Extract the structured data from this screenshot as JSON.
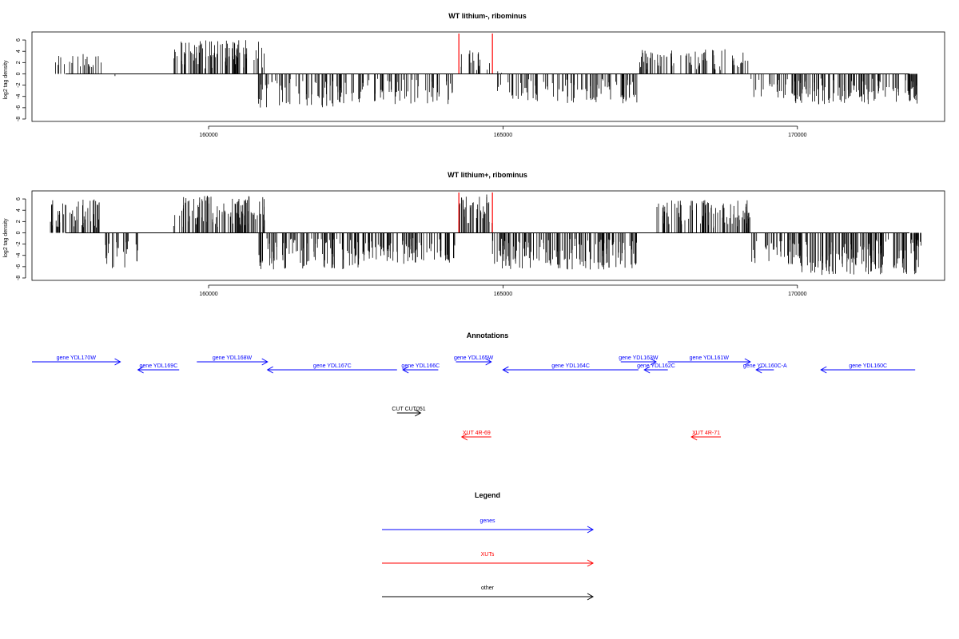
{
  "chart_data": [
    {
      "type": "bar",
      "title": "WT lithium-, ribominus",
      "ylabel": "log2 tag density",
      "xlim": [
        157000,
        172500
      ],
      "ylim": [
        -8,
        7
      ],
      "x_ticks": [
        "160000",
        "165000",
        "170000"
      ],
      "y_ticks": [
        "6",
        "4",
        "2",
        "0",
        "-2",
        "-4",
        "-6",
        "-8"
      ],
      "highlight_color": "#ff0000",
      "highlight_x": [
        164250,
        164820
      ],
      "segments": [
        {
          "start": 157300,
          "end": 158200,
          "sign": 1,
          "max": 3.5,
          "density": 0.35
        },
        {
          "start": 158200,
          "end": 158500,
          "sign": -1,
          "max": 1.5,
          "density": 0.03
        },
        {
          "start": 159400,
          "end": 160950,
          "sign": 1,
          "max": 6.0,
          "density": 0.8
        },
        {
          "start": 160800,
          "end": 162600,
          "sign": -1,
          "max": 6.0,
          "density": 0.55
        },
        {
          "start": 162600,
          "end": 164200,
          "sign": -1,
          "max": 5.5,
          "density": 0.5
        },
        {
          "start": 164250,
          "end": 164820,
          "sign": 1,
          "max": 4.2,
          "density": 0.35
        },
        {
          "start": 164820,
          "end": 165100,
          "sign": 1,
          "max": 1.0,
          "density": 0.1
        },
        {
          "start": 164900,
          "end": 167300,
          "sign": -1,
          "max": 5.2,
          "density": 0.55
        },
        {
          "start": 167300,
          "end": 169200,
          "sign": 1,
          "max": 4.5,
          "density": 0.55
        },
        {
          "start": 169200,
          "end": 170000,
          "sign": -1,
          "max": 4.5,
          "density": 0.45
        },
        {
          "start": 169900,
          "end": 172100,
          "sign": -1,
          "max": 5.5,
          "density": 0.8
        }
      ]
    },
    {
      "type": "bar",
      "title": "WT lithium+, ribominus",
      "ylabel": "log2 tag density",
      "xlim": [
        157000,
        172500
      ],
      "ylim": [
        -8,
        7
      ],
      "x_ticks": [
        "160000",
        "165000",
        "170000"
      ],
      "y_ticks": [
        "6",
        "4",
        "2",
        "0",
        "-2",
        "-4",
        "-6",
        "-8"
      ],
      "highlight_color": "#ff0000",
      "highlight_x": [
        164250,
        164820
      ],
      "segments": [
        {
          "start": 157300,
          "end": 158200,
          "sign": 1,
          "max": 6.0,
          "density": 0.85
        },
        {
          "start": 158200,
          "end": 158800,
          "sign": -1,
          "max": 6.3,
          "density": 0.55
        },
        {
          "start": 159400,
          "end": 160950,
          "sign": 1,
          "max": 7.0,
          "density": 0.9
        },
        {
          "start": 160800,
          "end": 162600,
          "sign": -1,
          "max": 6.5,
          "density": 0.75
        },
        {
          "start": 162600,
          "end": 164200,
          "sign": -1,
          "max": 5.5,
          "density": 0.75
        },
        {
          "start": 164250,
          "end": 164820,
          "sign": 1,
          "max": 7.0,
          "density": 0.9
        },
        {
          "start": 164820,
          "end": 167300,
          "sign": -1,
          "max": 6.5,
          "density": 0.8
        },
        {
          "start": 167600,
          "end": 169200,
          "sign": 1,
          "max": 5.8,
          "density": 0.75
        },
        {
          "start": 169200,
          "end": 170000,
          "sign": -1,
          "max": 6.0,
          "density": 0.6
        },
        {
          "start": 170000,
          "end": 172100,
          "sign": -1,
          "max": 7.5,
          "density": 1.0
        }
      ]
    }
  ],
  "annotations": {
    "title": "Annotations",
    "items": [
      {
        "label": "gene YDL170W",
        "start": 157000,
        "end": 158500,
        "strand": "+",
        "row": 0,
        "kind": "gene"
      },
      {
        "label": "gene YDL169C",
        "start": 158800,
        "end": 159500,
        "strand": "-",
        "row": 1,
        "kind": "gene"
      },
      {
        "label": "gene YDL168W",
        "start": 159800,
        "end": 161000,
        "strand": "+",
        "row": 0,
        "kind": "gene"
      },
      {
        "label": "gene YDL167C",
        "start": 161000,
        "end": 163200,
        "strand": "-",
        "row": 1,
        "kind": "gene"
      },
      {
        "label": "gene YDL166C",
        "start": 163300,
        "end": 163900,
        "strand": "-",
        "row": 1,
        "kind": "gene"
      },
      {
        "label": "gene YDL165W",
        "start": 164200,
        "end": 164800,
        "strand": "+",
        "row": 0,
        "kind": "gene"
      },
      {
        "label": "gene YDL164C",
        "start": 165000,
        "end": 167300,
        "strand": "-",
        "row": 1,
        "kind": "gene"
      },
      {
        "label": "gene YDL163W",
        "start": 167000,
        "end": 167600,
        "strand": "+",
        "row": 0,
        "kind": "gene"
      },
      {
        "label": "gene YDL162C",
        "start": 167400,
        "end": 167800,
        "strand": "-",
        "row": 1,
        "kind": "gene"
      },
      {
        "label": "gene YDL161W",
        "start": 167800,
        "end": 169200,
        "strand": "+",
        "row": 0,
        "kind": "gene"
      },
      {
        "label": "gene YDL160C-A",
        "start": 169300,
        "end": 169600,
        "strand": "-",
        "row": 1,
        "kind": "gene"
      },
      {
        "label": "gene YDL160C",
        "start": 170400,
        "end": 172000,
        "strand": "-",
        "row": 1,
        "kind": "gene"
      },
      {
        "label": "CUT CUT051",
        "start": 163200,
        "end": 163600,
        "strand": "+",
        "row": 2,
        "kind": "other"
      },
      {
        "label": "XUT 4R-69",
        "start": 164300,
        "end": 164800,
        "strand": "-",
        "row": 3,
        "kind": "xut"
      },
      {
        "label": "XUT 4R-71",
        "start": 168200,
        "end": 168700,
        "strand": "-",
        "row": 3,
        "kind": "xut"
      }
    ]
  },
  "legend": {
    "title": "Legend",
    "entries": [
      {
        "label": "genes",
        "color": "#0000ff"
      },
      {
        "label": "XUTs",
        "color": "#ff0000"
      },
      {
        "label": "other",
        "color": "#000000"
      }
    ]
  }
}
